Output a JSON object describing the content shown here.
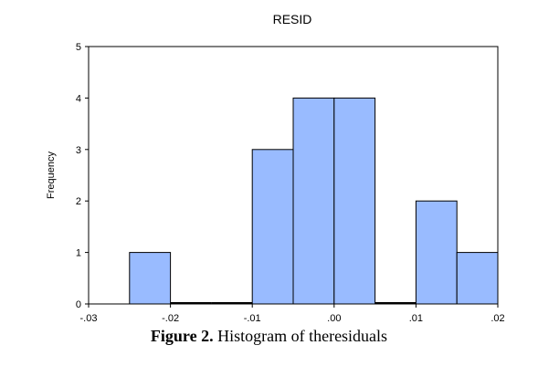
{
  "chart_data": {
    "type": "bar",
    "title": "RESID",
    "ylabel": "Frequency",
    "xlabel": "",
    "xlim": [
      -0.03,
      0.02
    ],
    "ylim": [
      0,
      5
    ],
    "xticks": [
      -0.03,
      -0.02,
      -0.01,
      0.0,
      0.01,
      0.02
    ],
    "xtick_labels": [
      "-.03",
      "-.02",
      "-.01",
      ".00",
      ".01",
      ".02"
    ],
    "yticks": [
      0,
      1,
      2,
      3,
      4,
      5
    ],
    "ytick_labels": [
      "0",
      "1",
      "2",
      "3",
      "4",
      "5"
    ],
    "bins": [
      {
        "from": -0.025,
        "to": -0.02,
        "value": 1
      },
      {
        "from": -0.02,
        "to": -0.015,
        "value": 0
      },
      {
        "from": -0.015,
        "to": -0.01,
        "value": 0
      },
      {
        "from": -0.01,
        "to": -0.005,
        "value": 3
      },
      {
        "from": -0.005,
        "to": 0.0,
        "value": 4
      },
      {
        "from": 0.0,
        "to": 0.005,
        "value": 4
      },
      {
        "from": 0.005,
        "to": 0.01,
        "value": 0
      },
      {
        "from": 0.01,
        "to": 0.015,
        "value": 2
      },
      {
        "from": 0.015,
        "to": 0.02,
        "value": 1
      }
    ],
    "bar_color": "#99bbff",
    "bar_stroke": "#000000",
    "grid": false
  },
  "caption": {
    "label": "Figure 2.",
    "text": " Histogram of theresiduals"
  }
}
